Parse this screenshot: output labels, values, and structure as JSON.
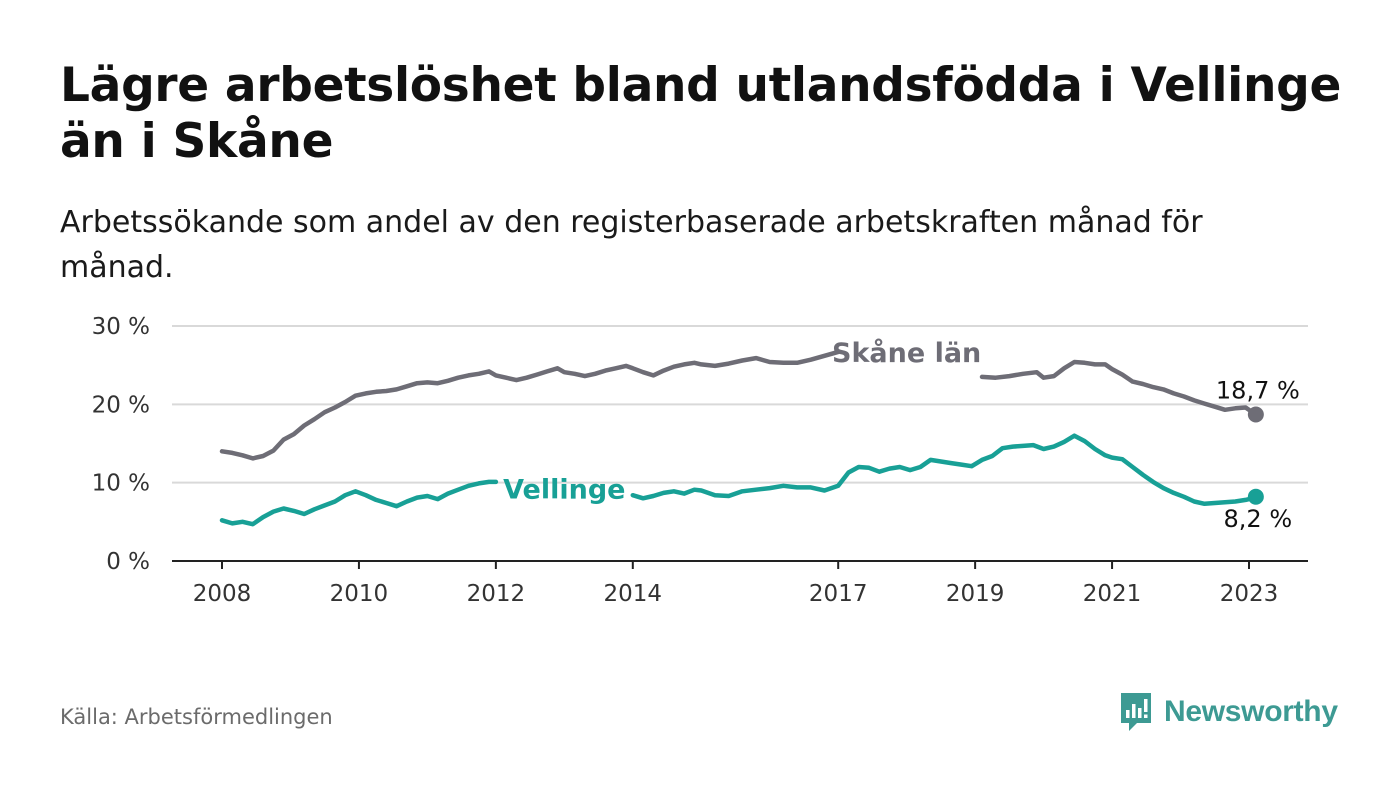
{
  "title": "Lägre arbetslöshet bland utlandsfödda i Vellinge än i Skåne",
  "subtitle": "Arbetssökande som andel av den registerbaserade arbetskraften månad för månad.",
  "source": "Källa: Arbetsförmedlingen",
  "logo": {
    "name": "Newsworthy",
    "icon": "newsworthy-chart-bubble-icon",
    "color": "#3d9a93"
  },
  "chart_data": {
    "type": "line",
    "title": "Lägre arbetslöshet bland utlandsfödda i Vellinge än i Skåne",
    "xlabel": "",
    "ylabel": "",
    "xlim": [
      2008.0,
      2023.95
    ],
    "ylim": [
      0,
      30
    ],
    "y_ticks": [
      {
        "value": 0,
        "label": "0 %"
      },
      {
        "value": 10,
        "label": "10 %"
      },
      {
        "value": 20,
        "label": "20 %"
      },
      {
        "value": 30,
        "label": "30 %"
      }
    ],
    "x_ticks": [
      {
        "value": 2008,
        "label": "2008"
      },
      {
        "value": 2010,
        "label": "2010"
      },
      {
        "value": 2012,
        "label": "2012"
      },
      {
        "value": 2014,
        "label": "2014"
      },
      {
        "value": 2017,
        "label": "2017"
      },
      {
        "value": 2019,
        "label": "2019"
      },
      {
        "value": 2021,
        "label": "2021"
      },
      {
        "value": 2023,
        "label": "2023"
      }
    ],
    "grid": true,
    "series": [
      {
        "name": "Skåne län",
        "label": "Skåne län",
        "color": "#6e6d76",
        "label_gap": [
          2017.0,
          2019.0
        ],
        "end_label": "18,7 %",
        "x": [
          2008.0,
          2008.15,
          2008.3,
          2008.45,
          2008.6,
          2008.75,
          2008.9,
          2009.05,
          2009.2,
          2009.35,
          2009.5,
          2009.65,
          2009.8,
          2009.95,
          2010.1,
          2010.25,
          2010.4,
          2010.55,
          2010.7,
          2010.85,
          2011.0,
          2011.15,
          2011.3,
          2011.45,
          2011.6,
          2011.75,
          2011.9,
          2012.0,
          2012.15,
          2012.3,
          2012.45,
          2012.6,
          2012.75,
          2012.9,
          2013.0,
          2013.15,
          2013.3,
          2013.45,
          2013.6,
          2013.75,
          2013.9,
          2014.0,
          2014.15,
          2014.3,
          2014.45,
          2014.6,
          2014.75,
          2014.9,
          2015.0,
          2015.2,
          2015.4,
          2015.6,
          2015.8,
          2016.0,
          2016.2,
          2016.4,
          2016.6,
          2016.8,
          2017.0,
          2019.1,
          2019.3,
          2019.5,
          2019.7,
          2019.9,
          2020.0,
          2020.15,
          2020.3,
          2020.45,
          2020.6,
          2020.75,
          2020.9,
          2021.0,
          2021.15,
          2021.3,
          2021.45,
          2021.6,
          2021.75,
          2021.9,
          2022.05,
          2022.2,
          2022.35,
          2022.5,
          2022.65,
          2022.8,
          2022.95,
          2023.05,
          2023.1
        ],
        "y": [
          14.0,
          13.8,
          13.5,
          13.1,
          13.4,
          14.1,
          15.5,
          16.2,
          17.3,
          18.1,
          19.0,
          19.6,
          20.3,
          21.1,
          21.4,
          21.6,
          21.7,
          21.9,
          22.3,
          22.7,
          22.8,
          22.7,
          23.0,
          23.4,
          23.7,
          23.9,
          24.2,
          23.7,
          23.4,
          23.1,
          23.4,
          23.8,
          24.2,
          24.6,
          24.1,
          23.9,
          23.6,
          23.9,
          24.3,
          24.6,
          24.9,
          24.6,
          24.1,
          23.7,
          24.3,
          24.8,
          25.1,
          25.3,
          25.1,
          24.9,
          25.2,
          25.6,
          25.9,
          25.4,
          25.3,
          25.3,
          25.7,
          26.2,
          26.7,
          23.5,
          23.4,
          23.6,
          23.9,
          24.1,
          23.4,
          23.6,
          24.6,
          25.4,
          25.3,
          25.1,
          25.1,
          24.5,
          23.8,
          22.9,
          22.6,
          22.2,
          21.9,
          21.4,
          21.0,
          20.5,
          20.1,
          19.7,
          19.3,
          19.5,
          19.6,
          19.0,
          18.7
        ]
      },
      {
        "name": "Vellinge",
        "label": "Vellinge",
        "color": "#18a096",
        "label_gap": [
          2012.0,
          2014.0
        ],
        "end_label": "8,2 %",
        "x": [
          2008.0,
          2008.15,
          2008.3,
          2008.45,
          2008.6,
          2008.75,
          2008.9,
          2009.05,
          2009.2,
          2009.35,
          2009.5,
          2009.65,
          2009.8,
          2009.95,
          2010.1,
          2010.25,
          2010.4,
          2010.55,
          2010.7,
          2010.85,
          2011.0,
          2011.15,
          2011.3,
          2011.45,
          2011.6,
          2011.75,
          2011.9,
          2012.0,
          2014.0,
          2014.15,
          2014.3,
          2014.45,
          2014.6,
          2014.75,
          2014.9,
          2015.0,
          2015.2,
          2015.4,
          2015.6,
          2015.8,
          2016.0,
          2016.2,
          2016.4,
          2016.6,
          2016.8,
          2017.0,
          2017.15,
          2017.3,
          2017.45,
          2017.6,
          2017.75,
          2017.9,
          2018.05,
          2018.2,
          2018.35,
          2018.5,
          2018.65,
          2018.8,
          2018.95,
          2019.1,
          2019.25,
          2019.4,
          2019.55,
          2019.7,
          2019.85,
          2020.0,
          2020.15,
          2020.3,
          2020.45,
          2020.6,
          2020.75,
          2020.9,
          2021.0,
          2021.15,
          2021.3,
          2021.45,
          2021.6,
          2021.75,
          2021.9,
          2022.05,
          2022.2,
          2022.35,
          2022.5,
          2022.65,
          2022.8,
          2022.95,
          2023.05,
          2023.1
        ],
        "y": [
          5.2,
          4.8,
          5.0,
          4.7,
          5.6,
          6.3,
          6.7,
          6.4,
          6.0,
          6.6,
          7.1,
          7.6,
          8.4,
          8.9,
          8.4,
          7.8,
          7.4,
          7.0,
          7.6,
          8.1,
          8.3,
          7.9,
          8.6,
          9.1,
          9.6,
          9.9,
          10.1,
          10.1,
          8.4,
          8.0,
          8.3,
          8.7,
          8.9,
          8.6,
          9.1,
          9.0,
          8.4,
          8.3,
          8.9,
          9.1,
          9.3,
          9.6,
          9.4,
          9.4,
          9.0,
          9.6,
          11.3,
          12.0,
          11.9,
          11.4,
          11.8,
          12.0,
          11.6,
          12.0,
          12.9,
          12.7,
          12.5,
          12.3,
          12.1,
          12.9,
          13.4,
          14.4,
          14.6,
          14.7,
          14.8,
          14.3,
          14.6,
          15.2,
          16.0,
          15.3,
          14.3,
          13.5,
          13.2,
          13.0,
          12.0,
          11.0,
          10.1,
          9.3,
          8.7,
          8.2,
          7.6,
          7.3,
          7.4,
          7.5,
          7.6,
          7.8,
          8.0,
          8.2
        ]
      }
    ]
  }
}
